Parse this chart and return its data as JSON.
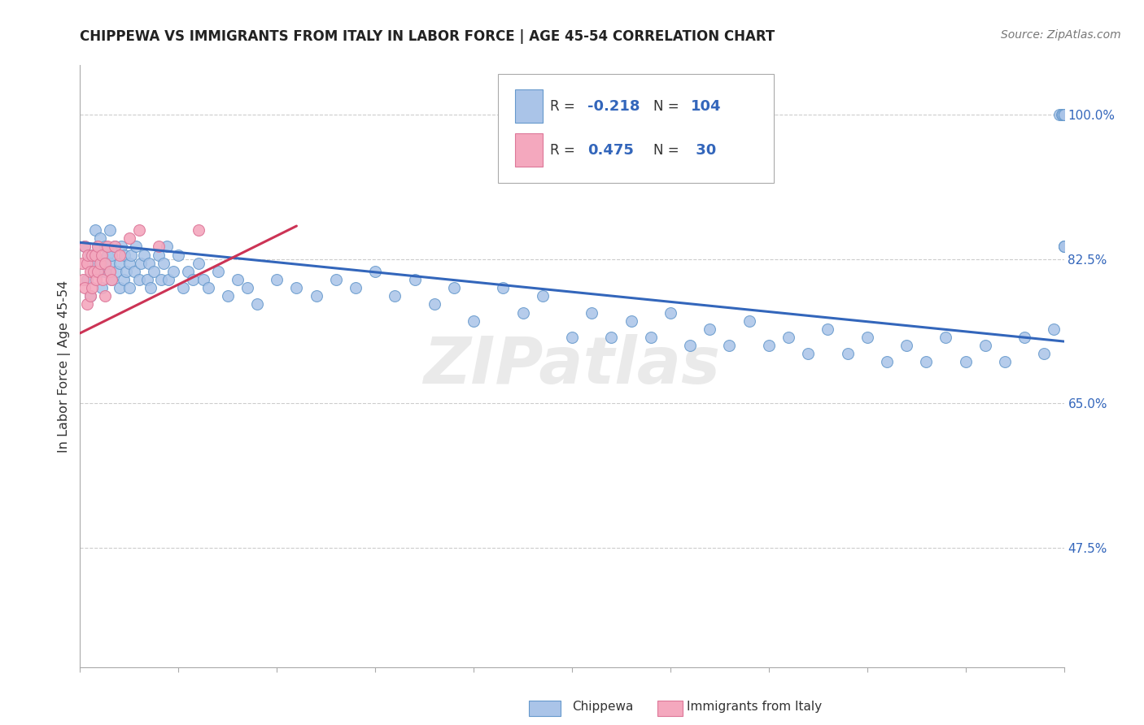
{
  "title": "CHIPPEWA VS IMMIGRANTS FROM ITALY IN LABOR FORCE | AGE 45-54 CORRELATION CHART",
  "source": "Source: ZipAtlas.com",
  "ylabel": "In Labor Force | Age 45-54",
  "xlim": [
    0.0,
    1.0
  ],
  "ylim": [
    0.33,
    1.06
  ],
  "yticks": [
    0.475,
    0.65,
    0.825,
    1.0
  ],
  "ytick_labels": [
    "47.5%",
    "65.0%",
    "82.5%",
    "100.0%"
  ],
  "chippewa_color": "#aac4e8",
  "italy_color": "#f4a8be",
  "chippewa_edge": "#6699cc",
  "italy_edge": "#dd7799",
  "blue_line_color": "#3366bb",
  "pink_line_color": "#cc3355",
  "background_color": "#ffffff",
  "R_chippewa": -0.218,
  "N_chippewa": 104,
  "R_italy": 0.475,
  "N_italy": 30,
  "blue_line_x0": 0.0,
  "blue_line_y0": 0.845,
  "blue_line_x1": 1.0,
  "blue_line_y1": 0.725,
  "pink_line_x0": 0.0,
  "pink_line_y0": 0.735,
  "pink_line_x1": 0.22,
  "pink_line_y1": 0.865,
  "chippewa_x": [
    0.005,
    0.007,
    0.01,
    0.01,
    0.015,
    0.015,
    0.018,
    0.02,
    0.02,
    0.022,
    0.022,
    0.025,
    0.025,
    0.028,
    0.03,
    0.03,
    0.032,
    0.032,
    0.035,
    0.037,
    0.04,
    0.04,
    0.042,
    0.044,
    0.045,
    0.047,
    0.05,
    0.05,
    0.052,
    0.055,
    0.057,
    0.06,
    0.062,
    0.065,
    0.068,
    0.07,
    0.072,
    0.075,
    0.08,
    0.082,
    0.085,
    0.088,
    0.09,
    0.095,
    0.1,
    0.105,
    0.11,
    0.115,
    0.12,
    0.125,
    0.13,
    0.14,
    0.15,
    0.16,
    0.17,
    0.18,
    0.2,
    0.22,
    0.24,
    0.26,
    0.28,
    0.3,
    0.32,
    0.34,
    0.36,
    0.38,
    0.4,
    0.43,
    0.45,
    0.47,
    0.5,
    0.52,
    0.54,
    0.56,
    0.58,
    0.6,
    0.62,
    0.64,
    0.66,
    0.68,
    0.7,
    0.72,
    0.74,
    0.76,
    0.78,
    0.8,
    0.82,
    0.84,
    0.86,
    0.88,
    0.9,
    0.92,
    0.94,
    0.96,
    0.98,
    0.99,
    0.995,
    0.998,
    0.999,
    1.0,
    1.0,
    1.0,
    1.0,
    1.0
  ],
  "chippewa_y": [
    0.84,
    0.8,
    0.83,
    0.78,
    0.82,
    0.86,
    0.84,
    0.81,
    0.85,
    0.82,
    0.79,
    0.84,
    0.81,
    0.83,
    0.82,
    0.86,
    0.8,
    0.83,
    0.84,
    0.81,
    0.82,
    0.79,
    0.84,
    0.8,
    0.83,
    0.81,
    0.82,
    0.79,
    0.83,
    0.81,
    0.84,
    0.8,
    0.82,
    0.83,
    0.8,
    0.82,
    0.79,
    0.81,
    0.83,
    0.8,
    0.82,
    0.84,
    0.8,
    0.81,
    0.83,
    0.79,
    0.81,
    0.8,
    0.82,
    0.8,
    0.79,
    0.81,
    0.78,
    0.8,
    0.79,
    0.77,
    0.8,
    0.79,
    0.78,
    0.8,
    0.79,
    0.81,
    0.78,
    0.8,
    0.77,
    0.79,
    0.75,
    0.79,
    0.76,
    0.78,
    0.73,
    0.76,
    0.73,
    0.75,
    0.73,
    0.76,
    0.72,
    0.74,
    0.72,
    0.75,
    0.72,
    0.73,
    0.71,
    0.74,
    0.71,
    0.73,
    0.7,
    0.72,
    0.7,
    0.73,
    0.7,
    0.72,
    0.7,
    0.73,
    0.71,
    0.74,
    1.0,
    1.0,
    1.0,
    1.0,
    1.0,
    0.84,
    0.84,
    0.84
  ],
  "italy_x": [
    0.002,
    0.003,
    0.005,
    0.005,
    0.007,
    0.007,
    0.008,
    0.01,
    0.01,
    0.012,
    0.012,
    0.014,
    0.015,
    0.016,
    0.018,
    0.018,
    0.02,
    0.022,
    0.023,
    0.025,
    0.025,
    0.028,
    0.03,
    0.032,
    0.035,
    0.04,
    0.05,
    0.06,
    0.08,
    0.12
  ],
  "italy_y": [
    0.82,
    0.8,
    0.84,
    0.79,
    0.82,
    0.77,
    0.83,
    0.81,
    0.78,
    0.83,
    0.79,
    0.81,
    0.83,
    0.8,
    0.84,
    0.81,
    0.82,
    0.83,
    0.8,
    0.82,
    0.78,
    0.84,
    0.81,
    0.8,
    0.84,
    0.83,
    0.85,
    0.86,
    0.84,
    0.86
  ]
}
